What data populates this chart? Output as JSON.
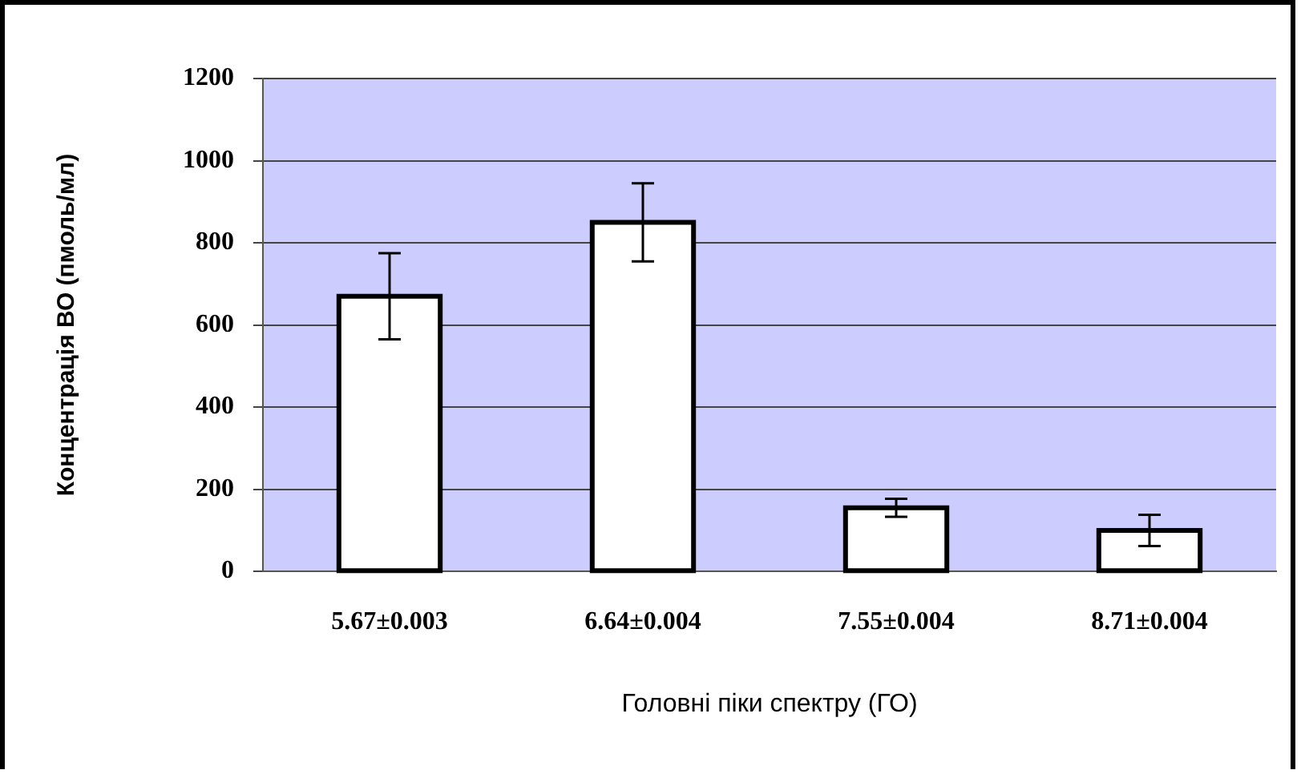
{
  "chart_data": {
    "type": "bar",
    "xlabel": "Головні піки спектру (ГО)",
    "ylabel": "Концентрація ВО (пмоль/мл)",
    "categories": [
      "5.67±0.003",
      "6.64±0.004",
      "7.55±0.004",
      "8.71±0.004"
    ],
    "values": [
      670,
      850,
      155,
      100
    ],
    "errors": [
      105,
      95,
      22,
      38
    ],
    "color": "#ffffff",
    "ylim": [
      0,
      1200
    ],
    "yticks": [
      0,
      200,
      400,
      600,
      800,
      1000,
      1200
    ],
    "grid": "y"
  }
}
